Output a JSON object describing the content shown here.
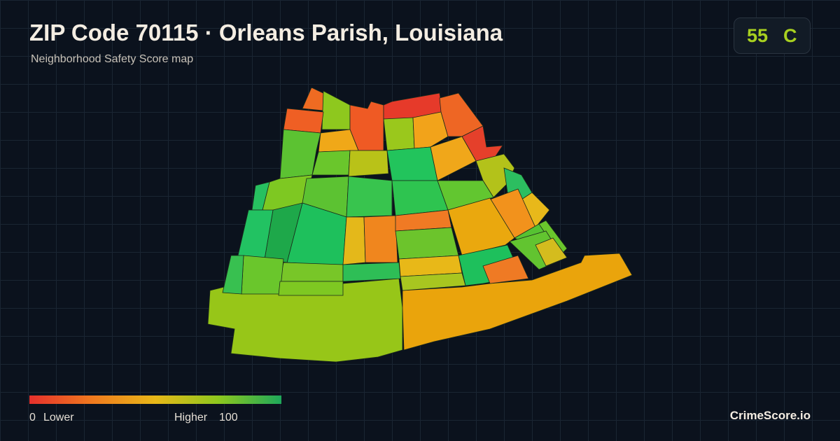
{
  "header": {
    "title": "ZIP Code 70115 · Orleans Parish, Louisiana",
    "subtitle": "Neighborhood Safety Score map"
  },
  "score": {
    "value": 55,
    "grade": "C"
  },
  "legend": {
    "min": 0,
    "min_label": "Lower",
    "max_label": "Higher",
    "max": 100
  },
  "brand": "CrimeScore.io"
}
